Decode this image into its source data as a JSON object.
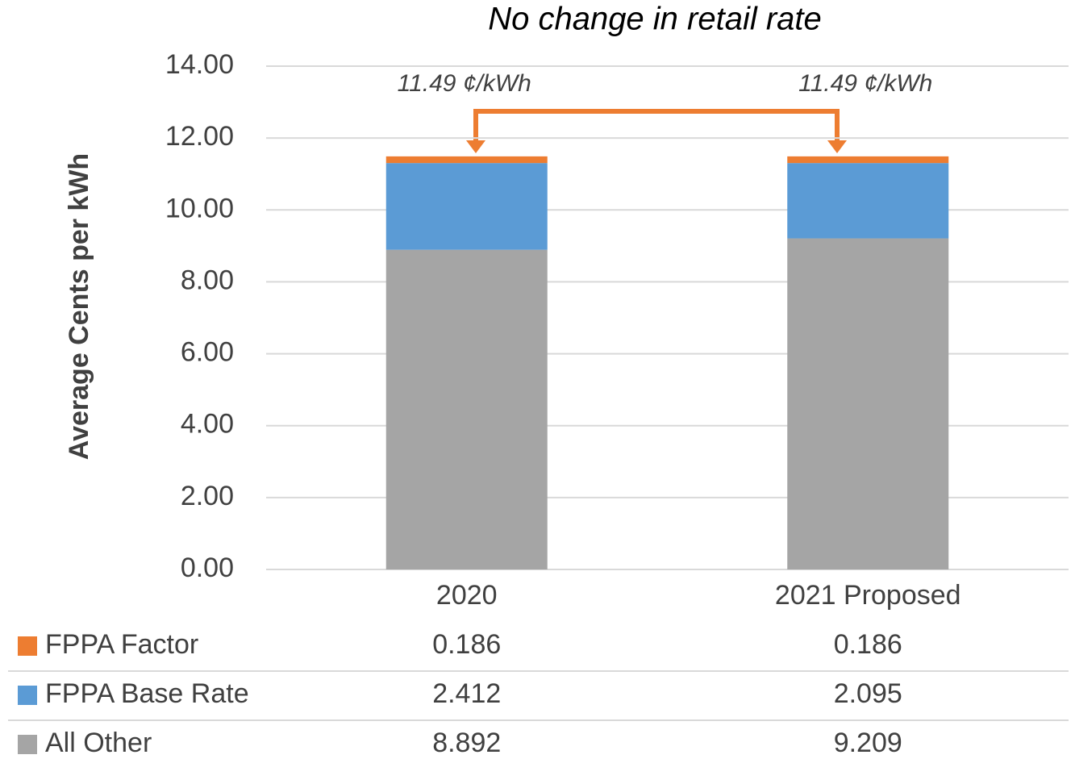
{
  "chart_data": {
    "type": "stacked_bar",
    "title": "No change in retail rate",
    "y_label": "Average Cents per kWh",
    "categories": [
      "2020",
      "2021 Proposed"
    ],
    "series": [
      {
        "name": "FPPA Factor",
        "color": "#ed7d31",
        "values": [
          0.186,
          0.186
        ]
      },
      {
        "name": "FPPA Base Rate",
        "color": "#5b9bd5",
        "values": [
          2.412,
          2.095
        ]
      },
      {
        "name": "All Other",
        "color": "#a5a5a5",
        "values": [
          8.892,
          9.209
        ]
      }
    ],
    "annotations": [
      "11.49 ¢/kWh",
      "11.49 ¢/kWh"
    ],
    "ylim": [
      0,
      14
    ],
    "yticks": [
      {
        "value": 0,
        "label": "0.00"
      },
      {
        "value": 2,
        "label": "2.00"
      },
      {
        "value": 4,
        "label": "4.00"
      },
      {
        "value": 6,
        "label": "6.00"
      },
      {
        "value": 8,
        "label": "8.00"
      },
      {
        "value": 10,
        "label": "10.00"
      },
      {
        "value": 12,
        "label": "12.00"
      },
      {
        "value": 14,
        "label": "14.00"
      }
    ],
    "grid": true
  }
}
